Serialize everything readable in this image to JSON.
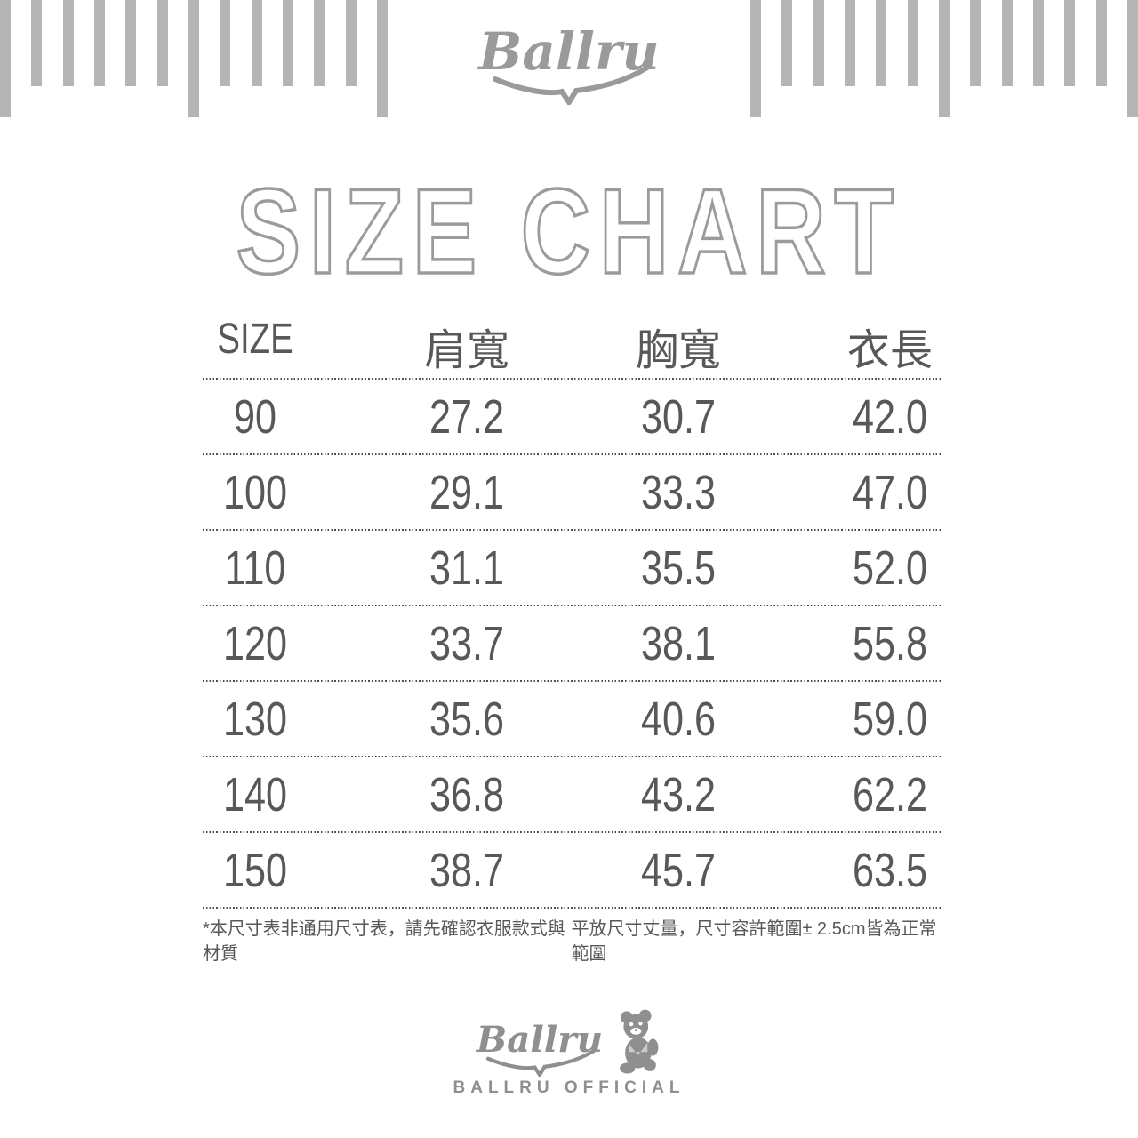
{
  "brand": {
    "name": "Ballru",
    "official": "BALLRU OFFICIAL"
  },
  "title": "SIZE CHART",
  "table": {
    "columns": [
      "SIZE",
      "肩寬",
      "胸寬",
      "衣長"
    ],
    "rows": [
      [
        "90",
        "27.2",
        "30.7",
        "42.0"
      ],
      [
        "100",
        "29.1",
        "33.3",
        "47.0"
      ],
      [
        "110",
        "31.1",
        "35.5",
        "52.0"
      ],
      [
        "120",
        "33.7",
        "38.1",
        "55.8"
      ],
      [
        "130",
        "35.6",
        "40.6",
        "59.0"
      ],
      [
        "140",
        "36.8",
        "43.2",
        "62.2"
      ],
      [
        "150",
        "38.7",
        "45.7",
        "63.5"
      ]
    ]
  },
  "notes": {
    "left": "*本尺寸表非通用尺寸表，請先確認衣服款式與材質",
    "right": "平放尺寸丈量，尺寸容許範圍± 2.5cm皆為正常範圍"
  },
  "colors": {
    "stripe_gray": "#b5b5b5",
    "logo_gray": "#9a9a9a",
    "title_outline_gray": "#9b9b9b",
    "text_dark": "#595757",
    "footer_gray": "#8f8f8f"
  },
  "chart_data": {
    "type": "table",
    "title": "SIZE CHART",
    "columns": [
      "SIZE",
      "肩寬",
      "胸寬",
      "衣長"
    ],
    "rows": [
      [
        "90",
        "27.2",
        "30.7",
        "42.0"
      ],
      [
        "100",
        "29.1",
        "33.3",
        "47.0"
      ],
      [
        "110",
        "31.1",
        "35.5",
        "52.0"
      ],
      [
        "120",
        "33.7",
        "38.1",
        "55.8"
      ],
      [
        "130",
        "35.6",
        "40.6",
        "59.0"
      ],
      [
        "140",
        "36.8",
        "43.2",
        "62.2"
      ],
      [
        "150",
        "38.7",
        "45.7",
        "63.5"
      ]
    ]
  }
}
